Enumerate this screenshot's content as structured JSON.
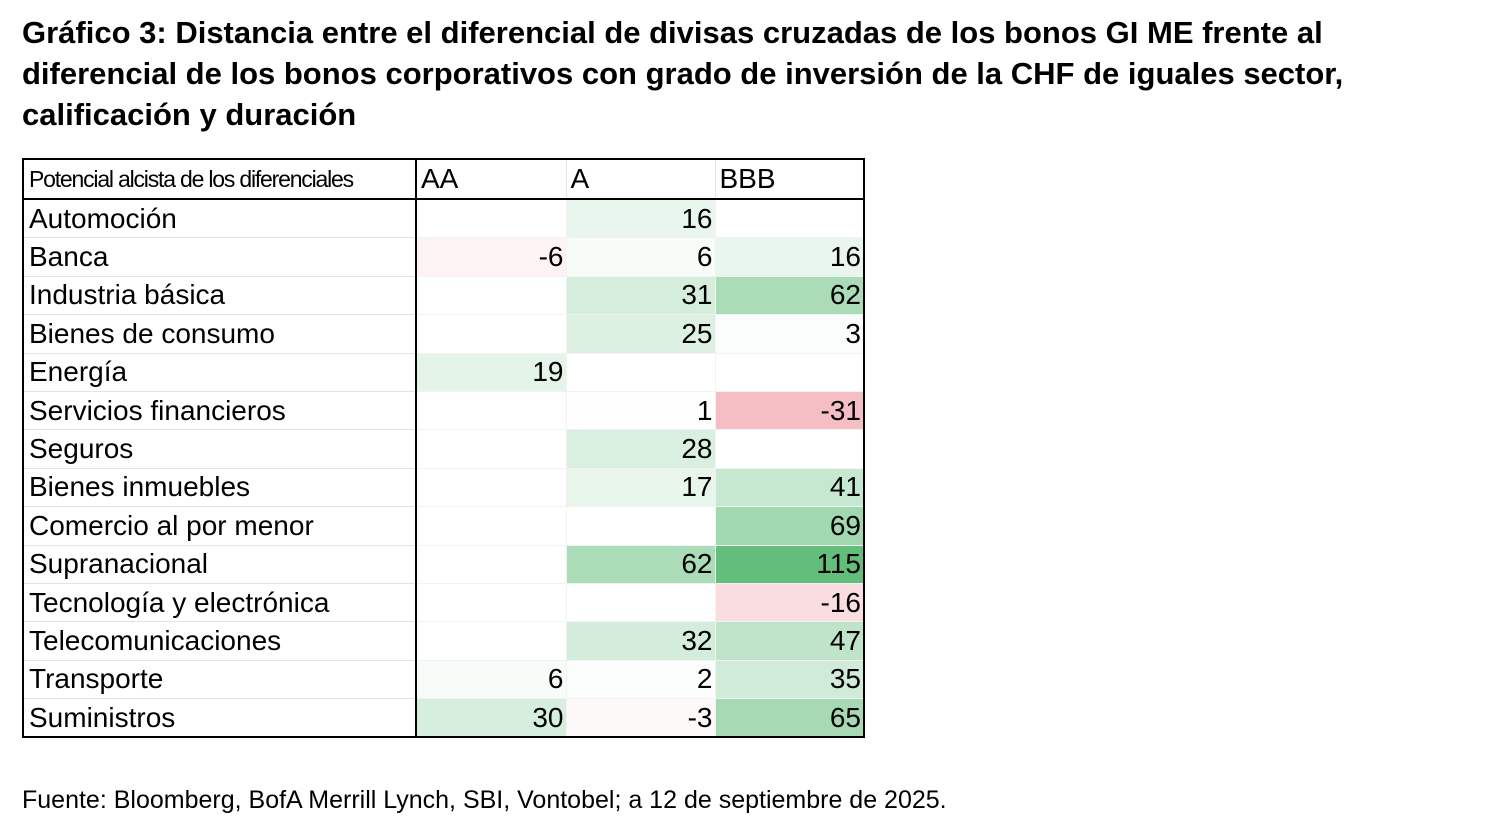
{
  "title": "Gráfico 3: Distancia entre el diferencial de divisas cruzadas de los bonos GI ME frente al diferencial de los bonos corporativos con grado de inversión de la CHF de iguales sector, calificación y duración",
  "table": {
    "header": [
      "Potencial alcista de los diferenciales",
      "AA",
      "A",
      "BBB"
    ],
    "rows": [
      [
        "Automoción",
        null,
        16,
        null
      ],
      [
        "Banca",
        -6,
        6,
        16
      ],
      [
        "Industria básica",
        null,
        31,
        62
      ],
      [
        "Bienes de consumo",
        null,
        25,
        3
      ],
      [
        "Energía",
        19,
        null,
        null
      ],
      [
        "Servicios financieros",
        null,
        1,
        -31
      ],
      [
        "Seguros",
        null,
        28,
        null
      ],
      [
        "Bienes inmuebles",
        null,
        17,
        41
      ],
      [
        "Comercio al por menor",
        null,
        null,
        69
      ],
      [
        "Supranacional",
        null,
        62,
        115
      ],
      [
        "Tecnología y electrónica",
        null,
        null,
        -16
      ],
      [
        "Telecomunicaciones",
        null,
        32,
        47
      ],
      [
        "Transporte",
        6,
        2,
        35
      ],
      [
        "Suministros",
        30,
        -3,
        65
      ]
    ]
  },
  "source": "Fuente: Bloomberg, BofA Merrill Lynch, SBI, Vontobel; a 12 de septiembre de 2025."
}
